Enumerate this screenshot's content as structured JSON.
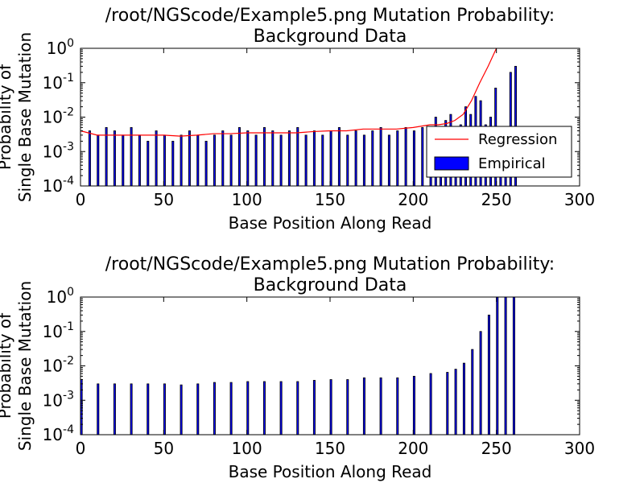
{
  "colors": {
    "bar_fill": "#0000ff",
    "bar_edge": "#000000",
    "regression": "#ff0000",
    "axes": "#000000",
    "background": "#ffffff"
  },
  "chart_data": [
    {
      "type": "bar",
      "title_line1": "/root/NGScode/Example5.png Mutation Probability:",
      "title_line2": "Background Data",
      "xlabel": "Base Position Along Read",
      "ylabel_line1": "Probability of",
      "ylabel_line2": "Single Base Mutation",
      "xlim": [
        0,
        300
      ],
      "ylim": [
        0.0001,
        1
      ],
      "yscale": "log",
      "x_ticks": [
        "0",
        "50",
        "100",
        "150",
        "200",
        "250",
        "300"
      ],
      "y_ticks": [
        {
          "base": "10",
          "exp": "-4"
        },
        {
          "base": "10",
          "exp": "-3"
        },
        {
          "base": "10",
          "exp": "-2"
        },
        {
          "base": "10",
          "exp": "-1"
        },
        {
          "base": "10",
          "exp": "0"
        }
      ],
      "legend": {
        "placement": "lower-right",
        "entries": [
          {
            "label": "Regression",
            "kind": "line"
          },
          {
            "label": "Empirical",
            "kind": "patch"
          }
        ]
      },
      "series": [
        {
          "name": "Empirical",
          "kind": "bar",
          "x": [
            5,
            10,
            15,
            20,
            25,
            30,
            35,
            40,
            45,
            50,
            55,
            60,
            65,
            70,
            75,
            80,
            85,
            90,
            95,
            100,
            105,
            110,
            115,
            120,
            125,
            130,
            135,
            140,
            145,
            150,
            155,
            160,
            165,
            170,
            175,
            180,
            185,
            190,
            195,
            200,
            205,
            210,
            213,
            216,
            219,
            222,
            225,
            228,
            231,
            234,
            237,
            240,
            243,
            246,
            249,
            252,
            255,
            258,
            261
          ],
          "values": [
            0.004,
            0.003,
            0.005,
            0.004,
            0.003,
            0.005,
            0.003,
            0.002,
            0.004,
            0.003,
            0.002,
            0.003,
            0.004,
            0.003,
            0.002,
            0.003,
            0.004,
            0.003,
            0.005,
            0.004,
            0.003,
            0.005,
            0.004,
            0.003,
            0.004,
            0.005,
            0.003,
            0.004,
            0.003,
            0.004,
            0.005,
            0.003,
            0.004,
            0.003,
            0.004,
            0.005,
            0.003,
            0.004,
            0.005,
            0.004,
            0.005,
            0.004,
            0.01,
            0.005,
            0.008,
            0.012,
            0.004,
            0.006,
            0.02,
            0.012,
            0.04,
            0.03,
            0.006,
            0.01,
            0.07,
            0.004,
            0.005,
            0.2,
            0.3
          ]
        },
        {
          "name": "Regression",
          "kind": "line",
          "x": [
            0,
            10,
            20,
            30,
            40,
            50,
            60,
            70,
            80,
            90,
            100,
            110,
            120,
            130,
            140,
            150,
            160,
            170,
            180,
            190,
            200,
            210,
            215,
            220,
            225,
            230,
            235,
            240,
            245,
            250
          ],
          "values": [
            0.004,
            0.003,
            0.003,
            0.003,
            0.003,
            0.003,
            0.0028,
            0.003,
            0.0033,
            0.0033,
            0.0035,
            0.0035,
            0.0035,
            0.0035,
            0.0038,
            0.004,
            0.004,
            0.0045,
            0.0045,
            0.0045,
            0.005,
            0.006,
            0.006,
            0.0065,
            0.008,
            0.012,
            0.03,
            0.1,
            0.3,
            1.0
          ]
        }
      ]
    },
    {
      "type": "bar",
      "title_line1": "/root/NGScode/Example5.png Mutation Probability:",
      "title_line2": "Background Data",
      "xlabel": "Base Position Along Read",
      "ylabel_line1": "Probability of",
      "ylabel_line2": "Single Base Mutation",
      "xlim": [
        0,
        300
      ],
      "ylim": [
        0.0001,
        1
      ],
      "yscale": "log",
      "x_ticks": [
        "0",
        "50",
        "100",
        "150",
        "200",
        "250",
        "300"
      ],
      "y_ticks": [
        {
          "base": "10",
          "exp": "-4"
        },
        {
          "base": "10",
          "exp": "-3"
        },
        {
          "base": "10",
          "exp": "-2"
        },
        {
          "base": "10",
          "exp": "-1"
        },
        {
          "base": "10",
          "exp": "0"
        }
      ],
      "series": [
        {
          "name": "",
          "kind": "bar",
          "x": [
            0,
            10,
            20,
            30,
            40,
            50,
            60,
            70,
            80,
            90,
            100,
            110,
            120,
            130,
            140,
            150,
            160,
            170,
            180,
            190,
            200,
            210,
            220,
            225,
            230,
            235,
            240,
            245,
            250,
            255,
            260
          ],
          "values": [
            0.004,
            0.003,
            0.003,
            0.003,
            0.003,
            0.003,
            0.0028,
            0.003,
            0.0033,
            0.0033,
            0.0035,
            0.0035,
            0.0035,
            0.0035,
            0.0038,
            0.004,
            0.004,
            0.0045,
            0.0045,
            0.0045,
            0.005,
            0.006,
            0.0065,
            0.008,
            0.012,
            0.03,
            0.1,
            0.3,
            1.0,
            1.0,
            1.0
          ]
        }
      ]
    }
  ]
}
